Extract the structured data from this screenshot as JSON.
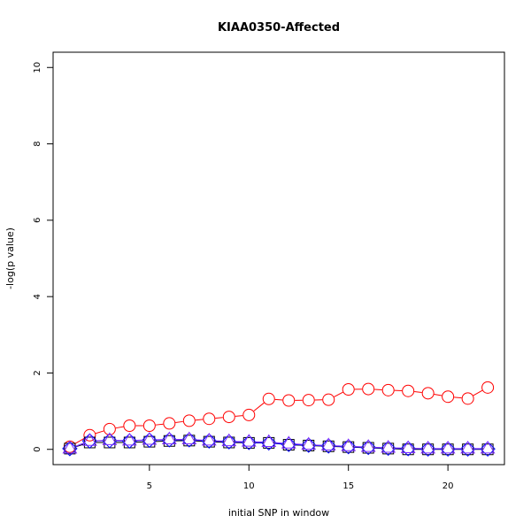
{
  "chart_data": {
    "type": "line",
    "title": "KIAA0350-Affected",
    "xlabel": "initial SNP in window",
    "ylabel": "-log(p value)",
    "xlim": [
      0.16,
      22.84
    ],
    "ylim": [
      -0.4,
      10.4
    ],
    "xticks": [
      5,
      10,
      15,
      20
    ],
    "yticks": [
      0,
      2,
      4,
      6,
      8,
      10
    ],
    "x": [
      1,
      2,
      3,
      4,
      5,
      6,
      7,
      8,
      9,
      10,
      11,
      12,
      13,
      14,
      15,
      16,
      17,
      18,
      19,
      20,
      21,
      22
    ],
    "series": [
      {
        "color": "#ff0000",
        "marker": "circle",
        "values": [
          0.07,
          0.37,
          0.53,
          0.62,
          0.62,
          0.68,
          0.75,
          0.8,
          0.85,
          0.9,
          1.32,
          1.28,
          1.29,
          1.3,
          1.57,
          1.58,
          1.55,
          1.53,
          1.47,
          1.38,
          1.33,
          1.62
        ]
      },
      {
        "color": "#000000",
        "marker": "square",
        "values": [
          0.02,
          0.18,
          0.18,
          0.18,
          0.2,
          0.22,
          0.23,
          0.2,
          0.18,
          0.17,
          0.17,
          0.12,
          0.1,
          0.08,
          0.06,
          0.04,
          0.02,
          0.0,
          0.0,
          0.0,
          0.0,
          0.0
        ]
      },
      {
        "color": "#0000ff",
        "marker": "diamond",
        "values": [
          0.02,
          0.22,
          0.23,
          0.22,
          0.24,
          0.25,
          0.25,
          0.22,
          0.2,
          0.18,
          0.17,
          0.13,
          0.11,
          0.09,
          0.07,
          0.05,
          0.03,
          0.02,
          0.01,
          0.01,
          0.01,
          0.01
        ]
      },
      {
        "color": "#7f2fff",
        "marker": "triangle",
        "values": [
          0.02,
          0.22,
          0.24,
          0.23,
          0.25,
          0.26,
          0.26,
          0.23,
          0.21,
          0.2,
          0.19,
          0.15,
          0.12,
          0.1,
          0.08,
          0.06,
          0.04,
          0.03,
          0.02,
          0.02,
          0.02,
          0.02
        ]
      }
    ]
  }
}
